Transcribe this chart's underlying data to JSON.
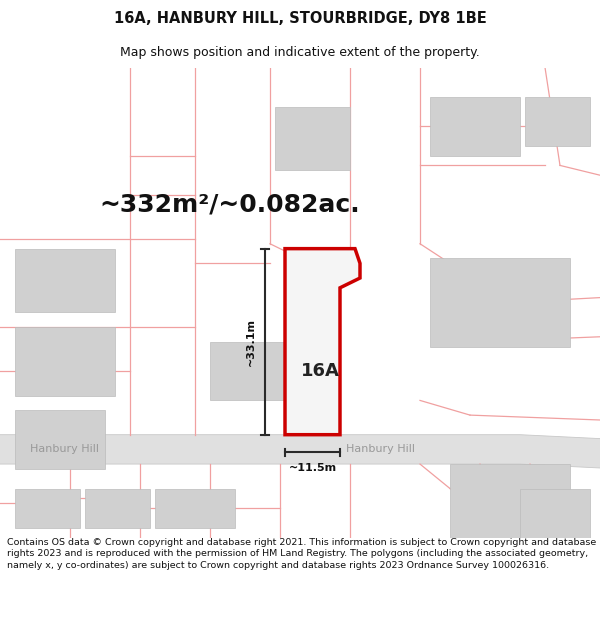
{
  "title": "16A, HANBURY HILL, STOURBRIDGE, DY8 1BE",
  "subtitle": "Map shows position and indicative extent of the property.",
  "area_label": "~332m²/~0.082ac.",
  "width_label": "~11.5m",
  "height_label": "~33.1m",
  "plot_label": "16A",
  "road_label1": "Hanbury Hill",
  "road_label2": "Hanbury Hill",
  "footer": "Contains OS data © Crown copyright and database right 2021. This information is subject to Crown copyright and database rights 2023 and is reproduced with the permission of HM Land Registry. The polygons (including the associated geometry, namely x, y co-ordinates) are subject to Crown copyright and database rights 2023 Ordnance Survey 100026316.",
  "background_color": "#ffffff",
  "plot_fill": "#f8f8f8",
  "plot_edge_color": "#cc0000",
  "road_color": "#e0e0e0",
  "road_edge_color": "#c8c8c8",
  "boundary_color": "#f0a0a0",
  "building_color": "#d0d0d0",
  "building_edge_color": "#bbbbbb",
  "dim_line_color": "#2a2a2a",
  "road_text_color": "#999999",
  "title_fontsize": 10.5,
  "subtitle_fontsize": 9,
  "area_fontsize": 18,
  "label_fontsize": 13,
  "dim_fontsize": 8,
  "footer_fontsize": 6.8,
  "road_fontsize": 8
}
